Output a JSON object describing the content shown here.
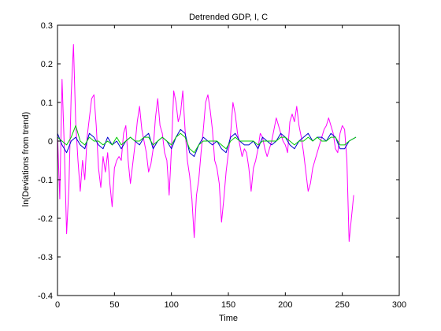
{
  "chart_data": {
    "type": "line",
    "title": "Detrended GDP, I, C",
    "xlabel": "Time",
    "ylabel": "ln(Deviations from trend)",
    "xlim": [
      0,
      300
    ],
    "ylim": [
      -0.4,
      0.3
    ],
    "xticks": [
      0,
      50,
      100,
      150,
      200,
      250,
      300
    ],
    "yticks": [
      -0.4,
      -0.3,
      -0.2,
      -0.1,
      0,
      0.1,
      0.2,
      0.3
    ],
    "xtick_labels": [
      "0",
      "50",
      "100",
      "150",
      "200",
      "250",
      "300"
    ],
    "ytick_labels": [
      "-0.4",
      "-0.3",
      "-0.2",
      "-0.1",
      "0",
      "0.1",
      "0.2",
      "0.3"
    ],
    "grid": false,
    "legend": "none",
    "series": [
      {
        "color": "#ff00ff",
        "x": [
          0,
          2,
          4,
          6,
          8,
          10,
          12,
          14,
          16,
          18,
          20,
          22,
          24,
          26,
          28,
          30,
          32,
          34,
          36,
          38,
          40,
          42,
          44,
          46,
          48,
          50,
          52,
          54,
          56,
          58,
          60,
          62,
          64,
          66,
          68,
          70,
          72,
          74,
          76,
          78,
          80,
          82,
          84,
          86,
          88,
          90,
          92,
          94,
          96,
          98,
          100,
          102,
          104,
          106,
          108,
          110,
          112,
          114,
          116,
          118,
          120,
          122,
          124,
          126,
          128,
          130,
          132,
          134,
          136,
          138,
          140,
          142,
          144,
          146,
          148,
          150,
          152,
          154,
          156,
          158,
          160,
          162,
          164,
          166,
          168,
          170,
          172,
          174,
          176,
          178,
          180,
          182,
          184,
          186,
          188,
          190,
          192,
          194,
          196,
          198,
          200,
          202,
          204,
          206,
          208,
          210,
          212,
          214,
          216,
          218,
          220,
          222,
          224,
          226,
          228,
          230,
          232,
          234,
          236,
          238,
          240,
          242,
          244,
          246,
          248,
          250,
          252,
          254,
          256,
          258,
          260
        ],
        "values": [
          0.02,
          -0.15,
          0.16,
          -0.02,
          -0.24,
          -0.12,
          0.12,
          0.25,
          0.05,
          -0.05,
          -0.13,
          -0.05,
          -0.1,
          0.01,
          0.06,
          0.11,
          0.12,
          0.04,
          -0.07,
          -0.12,
          -0.04,
          -0.08,
          -0.03,
          -0.11,
          -0.17,
          -0.07,
          -0.05,
          -0.04,
          -0.05,
          0.02,
          0.04,
          -0.05,
          -0.11,
          -0.06,
          -0.01,
          0.05,
          0.09,
          0.03,
          0.0,
          -0.03,
          -0.08,
          -0.06,
          -0.02,
          0.06,
          0.11,
          0.04,
          0.02,
          -0.03,
          -0.05,
          -0.14,
          -0.02,
          0.13,
          0.1,
          0.05,
          0.07,
          0.13,
          0.03,
          -0.05,
          -0.09,
          -0.15,
          -0.25,
          -0.14,
          -0.1,
          -0.03,
          0.03,
          0.1,
          0.12,
          0.08,
          0.03,
          -0.05,
          -0.07,
          -0.11,
          -0.21,
          -0.15,
          -0.08,
          -0.03,
          0.02,
          0.1,
          0.07,
          0.02,
          -0.01,
          -0.04,
          -0.02,
          -0.03,
          -0.07,
          -0.13,
          -0.07,
          -0.05,
          -0.02,
          0.02,
          0.01,
          -0.02,
          -0.04,
          -0.02,
          0.0,
          0.03,
          0.06,
          0.04,
          0.02,
          0.0,
          -0.01,
          -0.03,
          0.05,
          0.07,
          0.05,
          0.09,
          0.04,
          0.01,
          -0.03,
          -0.08,
          -0.13,
          -0.11,
          -0.07,
          -0.05,
          -0.03,
          -0.01,
          0.01,
          0.03,
          0.04,
          0.06,
          0.04,
          0.02,
          -0.02,
          -0.03,
          0.02,
          0.04,
          0.03,
          -0.05,
          -0.26,
          -0.2,
          -0.14
        ]
      },
      {
        "color": "#0000cc",
        "x": [
          0,
          4,
          8,
          12,
          16,
          20,
          24,
          28,
          32,
          36,
          40,
          44,
          48,
          52,
          56,
          60,
          64,
          68,
          72,
          76,
          80,
          84,
          88,
          92,
          96,
          100,
          104,
          108,
          112,
          116,
          120,
          124,
          128,
          132,
          136,
          140,
          144,
          148,
          152,
          156,
          160,
          164,
          168,
          172,
          176,
          180,
          184,
          188,
          192,
          196,
          200,
          204,
          208,
          212,
          216,
          220,
          224,
          228,
          232,
          236,
          240,
          244,
          248,
          252,
          256,
          262
        ],
        "values": [
          0.02,
          -0.01,
          -0.03,
          0.0,
          0.01,
          -0.01,
          -0.02,
          0.02,
          0.01,
          -0.01,
          -0.02,
          0.01,
          -0.01,
          0.0,
          -0.02,
          0.0,
          0.01,
          0.0,
          -0.01,
          0.01,
          0.02,
          -0.02,
          0.0,
          0.01,
          0.0,
          -0.02,
          0.01,
          0.03,
          0.02,
          -0.03,
          -0.04,
          -0.01,
          0.01,
          0.0,
          -0.01,
          0.0,
          -0.02,
          -0.03,
          0.01,
          0.02,
          0.0,
          -0.01,
          -0.01,
          0.0,
          -0.02,
          0.01,
          0.0,
          -0.01,
          0.0,
          0.02,
          0.01,
          -0.01,
          -0.02,
          0.0,
          0.01,
          0.02,
          0.0,
          0.01,
          0.01,
          0.0,
          0.02,
          0.01,
          -0.02,
          -0.02,
          0.0,
          0.01
        ]
      },
      {
        "color": "#00cc00",
        "x": [
          0,
          4,
          8,
          12,
          16,
          20,
          24,
          28,
          32,
          36,
          40,
          44,
          48,
          52,
          56,
          60,
          64,
          68,
          72,
          76,
          80,
          84,
          88,
          92,
          96,
          100,
          104,
          108,
          112,
          116,
          120,
          124,
          128,
          132,
          136,
          140,
          144,
          148,
          152,
          156,
          160,
          164,
          168,
          172,
          176,
          180,
          184,
          188,
          192,
          196,
          200,
          204,
          208,
          212,
          216,
          220,
          224,
          228,
          232,
          236,
          240,
          244,
          248,
          252,
          256,
          262
        ],
        "values": [
          0.01,
          0.0,
          -0.01,
          0.01,
          0.04,
          0.0,
          -0.01,
          0.01,
          0.0,
          0.0,
          -0.01,
          0.0,
          -0.01,
          0.01,
          -0.01,
          0.0,
          0.01,
          0.0,
          0.0,
          0.01,
          0.01,
          -0.01,
          0.0,
          0.01,
          0.0,
          -0.01,
          0.01,
          0.02,
          0.01,
          -0.02,
          -0.03,
          -0.01,
          0.0,
          0.0,
          0.0,
          0.0,
          -0.01,
          -0.02,
          0.0,
          0.01,
          0.0,
          0.0,
          0.0,
          0.0,
          -0.01,
          0.0,
          0.0,
          0.0,
          0.0,
          0.01,
          0.01,
          0.0,
          -0.01,
          0.0,
          0.0,
          0.01,
          0.0,
          0.01,
          0.0,
          0.0,
          0.01,
          0.01,
          -0.01,
          -0.01,
          0.0,
          0.01
        ]
      }
    ]
  }
}
